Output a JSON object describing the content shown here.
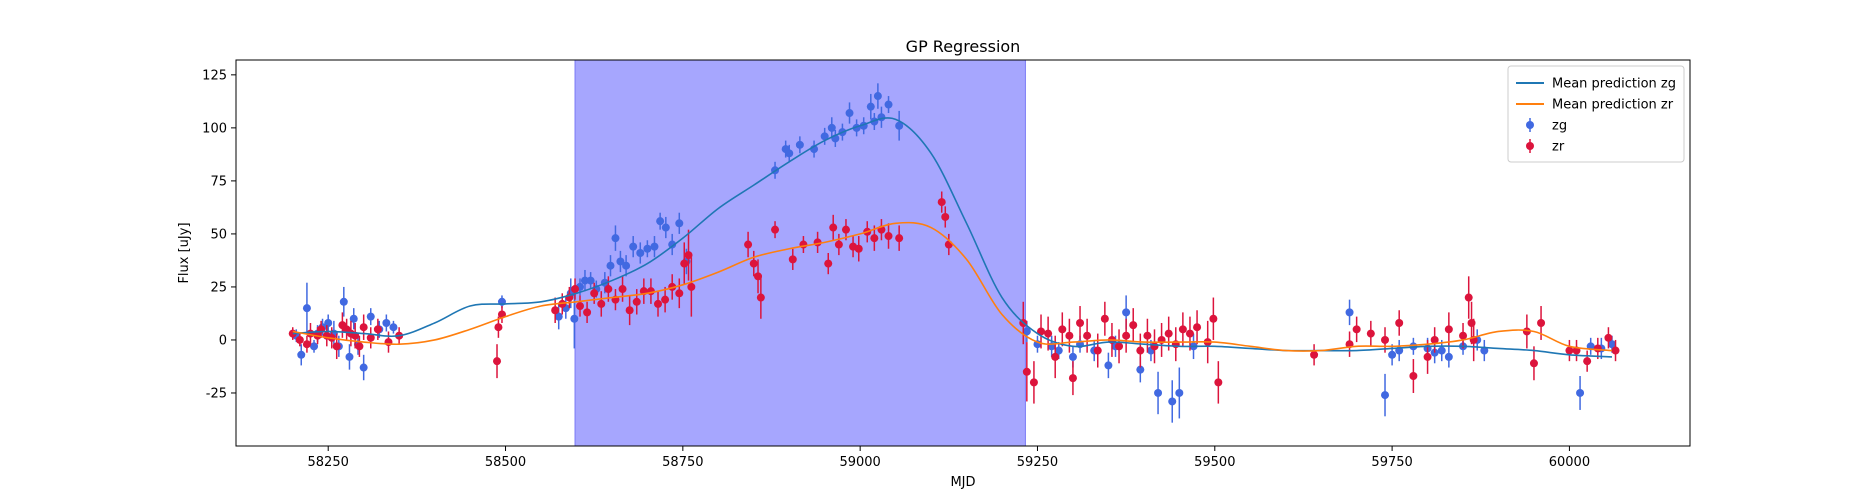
{
  "chart_data": {
    "type": "scatter",
    "title": "GP Regression",
    "xlabel": "MJD",
    "ylabel": "Flux [uJy]",
    "xlim": [
      58120,
      60170
    ],
    "ylim": [
      -50,
      132
    ],
    "xticks": [
      58250,
      58500,
      58750,
      59000,
      59250,
      59500,
      59750,
      60000
    ],
    "yticks": [
      -25,
      0,
      25,
      50,
      75,
      100,
      125
    ],
    "grid": false,
    "legend_position": "top-right",
    "shaded_region": {
      "x_start": 58598,
      "x_end": 59233,
      "color": "#a6a6fe"
    },
    "legend": [
      {
        "label": "Mean prediction zg",
        "kind": "line",
        "color": "#1f77b4"
      },
      {
        "label": "Mean prediction zr",
        "kind": "line",
        "color": "#ff7f0e"
      },
      {
        "label": "zg",
        "kind": "errorbar",
        "color": "#4169e1"
      },
      {
        "label": "zr",
        "kind": "errorbar",
        "color": "#dc143c"
      }
    ],
    "series": [
      {
        "name": "Mean prediction zg",
        "kind": "line",
        "color": "#1f77b4",
        "x": [
          58200,
          58250,
          58300,
          58350,
          58400,
          58450,
          58500,
          58550,
          58600,
          58650,
          58700,
          58750,
          58800,
          58850,
          58900,
          58950,
          59000,
          59050,
          59100,
          59150,
          59200,
          59250,
          59300,
          59350,
          59400,
          59450,
          59500,
          59550,
          59600,
          59650,
          59700,
          59750,
          59800,
          59850,
          59900,
          59950,
          60000,
          60060
        ],
        "y": [
          3,
          4,
          3,
          2,
          8,
          16,
          17,
          18,
          22,
          28,
          36,
          48,
          62,
          73,
          84,
          94,
          101,
          104,
          88,
          55,
          20,
          3,
          -3,
          -1,
          -2,
          -3,
          -3,
          -4,
          -5,
          -5,
          -5,
          -4,
          -3,
          -3,
          -4,
          -5,
          -7,
          -8
        ]
      },
      {
        "name": "Mean prediction zr",
        "kind": "line",
        "color": "#ff7f0e",
        "x": [
          58200,
          58250,
          58300,
          58350,
          58400,
          58450,
          58500,
          58550,
          58600,
          58650,
          58700,
          58750,
          58800,
          58850,
          58900,
          58950,
          59000,
          59050,
          59100,
          59150,
          59200,
          59250,
          59300,
          59350,
          59400,
          59450,
          59500,
          59550,
          59600,
          59650,
          59700,
          59750,
          59800,
          59850,
          59900,
          59950,
          60000,
          60060
        ],
        "y": [
          4,
          1,
          -1,
          -2,
          0,
          5,
          11,
          16,
          18,
          20,
          22,
          26,
          32,
          39,
          43,
          46,
          50,
          55,
          53,
          38,
          12,
          -1,
          -1,
          0,
          -1,
          -1,
          -1,
          -3,
          -5,
          -5,
          -3,
          -3,
          -2,
          0,
          4,
          4,
          -3,
          -5
        ]
      },
      {
        "name": "zg",
        "kind": "errorbar",
        "color": "#4169e1",
        "x": [
          58205,
          58212,
          58220,
          58230,
          58235,
          58242,
          58250,
          58258,
          58265,
          58272,
          58280,
          58286,
          58292,
          58300,
          58310,
          58322,
          58332,
          58342,
          58495,
          58575,
          58585,
          58592,
          58597,
          58605,
          58612,
          58620,
          58628,
          58640,
          58648,
          58655,
          58662,
          58670,
          58680,
          58690,
          58700,
          58710,
          58718,
          58726,
          58735,
          58745,
          58755,
          58880,
          58895,
          58900,
          58915,
          58935,
          58950,
          58960,
          58965,
          58975,
          58985,
          58995,
          59005,
          59015,
          59020,
          59025,
          59030,
          59040,
          59055,
          59235,
          59250,
          59270,
          59280,
          59300,
          59310,
          59330,
          59350,
          59360,
          59375,
          59395,
          59410,
          59420,
          59440,
          59450,
          59470,
          59690,
          59740,
          59750,
          59760,
          59780,
          59800,
          59810,
          59820,
          59830,
          59850,
          59870,
          59880,
          60015,
          60030,
          60045,
          60060
        ],
        "y": [
          2,
          -7,
          15,
          -3,
          3,
          6,
          8,
          3,
          -3,
          18,
          -8,
          10,
          -2,
          -13,
          11,
          5,
          8,
          6,
          18,
          11,
          15,
          22,
          10,
          25,
          28,
          28,
          24,
          27,
          35,
          48,
          37,
          35,
          44,
          41,
          43,
          44,
          56,
          53,
          45,
          55,
          37,
          80,
          90,
          88,
          92,
          90,
          96,
          100,
          95,
          98,
          107,
          100,
          101,
          110,
          103,
          115,
          105,
          111,
          101,
          4,
          -2,
          -3,
          -5,
          -8,
          -2,
          -5,
          -12,
          -3,
          13,
          -14,
          -5,
          -25,
          -29,
          -25,
          -3,
          13,
          -26,
          -7,
          -5,
          -3,
          -4,
          -6,
          -5,
          -8,
          -3,
          0,
          -5,
          -25,
          -3,
          -4,
          -2
        ],
        "yerr": [
          3,
          5,
          12,
          3,
          4,
          4,
          4,
          6,
          5,
          7,
          6,
          5,
          5,
          6,
          4,
          4,
          4,
          3,
          3,
          6,
          5,
          7,
          14,
          4,
          5,
          4,
          4,
          5,
          5,
          6,
          5,
          5,
          5,
          5,
          4,
          5,
          4,
          5,
          5,
          5,
          6,
          4,
          4,
          4,
          4,
          4,
          4,
          5,
          4,
          4,
          5,
          4,
          4,
          6,
          4,
          6,
          5,
          4,
          7,
          5,
          4,
          5,
          4,
          5,
          4,
          5,
          6,
          5,
          8,
          6,
          5,
          10,
          10,
          12,
          6,
          6,
          10,
          5,
          5,
          4,
          5,
          5,
          5,
          5,
          4,
          5,
          5,
          8,
          4,
          5,
          4
        ]
      },
      {
        "name": "zr",
        "kind": "errorbar",
        "color": "#dc143c",
        "x": [
          58200,
          58210,
          58220,
          58225,
          58235,
          58240,
          58248,
          58255,
          58262,
          58270,
          58276,
          58282,
          58288,
          58294,
          58300,
          58310,
          58320,
          58335,
          58350,
          58488,
          58490,
          58495,
          58570,
          58580,
          58590,
          58598,
          58605,
          58615,
          58625,
          58635,
          58645,
          58655,
          58665,
          58675,
          58685,
          58695,
          58705,
          58715,
          58725,
          58735,
          58745,
          58752,
          58758,
          58762,
          58842,
          58850,
          58856,
          58860,
          58880,
          58905,
          58920,
          58940,
          58955,
          58962,
          58970,
          58980,
          58990,
          58998,
          59010,
          59020,
          59030,
          59040,
          59055,
          59115,
          59120,
          59125,
          59230,
          59235,
          59245,
          59255,
          59265,
          59275,
          59285,
          59295,
          59300,
          59310,
          59320,
          59335,
          59345,
          59355,
          59365,
          59375,
          59385,
          59395,
          59405,
          59415,
          59425,
          59435,
          59445,
          59455,
          59465,
          59475,
          59490,
          59498,
          59505,
          59640,
          59690,
          59700,
          59720,
          59740,
          59760,
          59780,
          59800,
          59810,
          59830,
          59850,
          59858,
          59862,
          59865,
          59940,
          59950,
          59960,
          60000,
          60010,
          60025,
          60040,
          60055,
          60065
        ],
        "y": [
          3,
          0,
          -2,
          3,
          2,
          5,
          2,
          1,
          -3,
          7,
          5,
          3,
          2,
          -3,
          6,
          1,
          5,
          -1,
          2,
          -10,
          6,
          12,
          14,
          17,
          20,
          24,
          16,
          13,
          22,
          17,
          24,
          19,
          24,
          14,
          18,
          23,
          23,
          17,
          19,
          25,
          22,
          36,
          40,
          25,
          45,
          36,
          30,
          20,
          52,
          38,
          45,
          46,
          36,
          53,
          45,
          52,
          44,
          43,
          51,
          48,
          52,
          49,
          48,
          65,
          58,
          45,
          8,
          -15,
          -20,
          4,
          3,
          -8,
          5,
          2,
          -18,
          8,
          2,
          -5,
          10,
          0,
          -3,
          2,
          7,
          -5,
          2,
          -3,
          0,
          3,
          -2,
          5,
          3,
          6,
          -1,
          10,
          -20,
          -7,
          -2,
          5,
          3,
          0,
          8,
          -17,
          -8,
          0,
          5,
          2,
          20,
          8,
          0,
          4,
          -11,
          8,
          -5,
          -5,
          -10,
          -4,
          1,
          -5
        ],
        "yerr": [
          3,
          3,
          4,
          5,
          4,
          4,
          5,
          5,
          6,
          6,
          5,
          6,
          6,
          5,
          6,
          5,
          5,
          5,
          4,
          8,
          5,
          4,
          6,
          5,
          5,
          5,
          5,
          5,
          5,
          6,
          6,
          5,
          6,
          7,
          6,
          6,
          6,
          6,
          6,
          6,
          7,
          10,
          12,
          14,
          6,
          6,
          8,
          10,
          4,
          5,
          4,
          5,
          5,
          6,
          5,
          5,
          5,
          6,
          5,
          6,
          5,
          6,
          6,
          5,
          5,
          5,
          10,
          14,
          10,
          8,
          8,
          10,
          8,
          8,
          8,
          8,
          8,
          8,
          8,
          8,
          8,
          8,
          8,
          8,
          8,
          8,
          8,
          8,
          8,
          8,
          8,
          8,
          10,
          10,
          10,
          5,
          6,
          6,
          6,
          6,
          6,
          8,
          8,
          6,
          8,
          6,
          10,
          10,
          10,
          8,
          8,
          8,
          5,
          5,
          5,
          5,
          5,
          5
        ]
      }
    ]
  }
}
